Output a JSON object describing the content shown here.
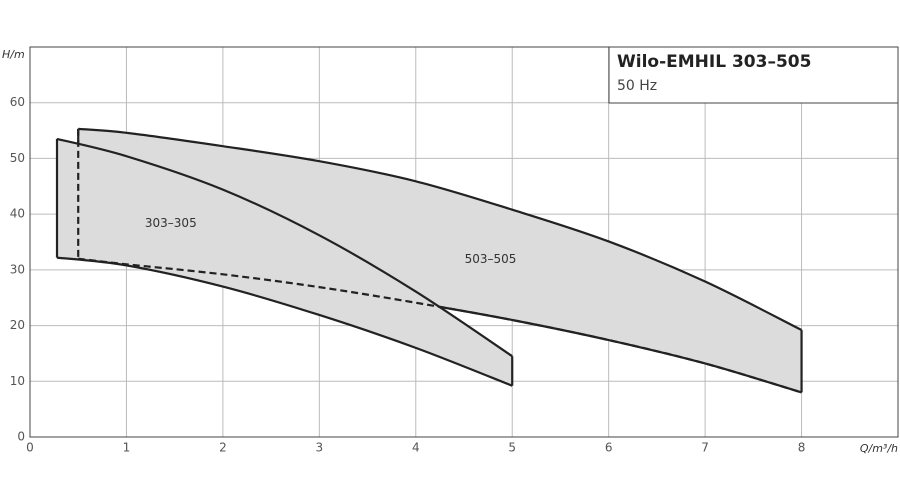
{
  "chart_data": {
    "type": "range-area",
    "title": "Wilo‑EMHIL 303–505",
    "subtitle": "50 Hz",
    "x_label": "Q/m³/h",
    "y_label": "H/m",
    "xlim": [
      0,
      9
    ],
    "ylim": [
      0,
      70
    ],
    "xticks": [
      0,
      1,
      2,
      3,
      4,
      5,
      6,
      7,
      8
    ],
    "yticks": [
      0,
      10,
      20,
      30,
      40,
      50,
      60
    ],
    "grid": true,
    "series": [
      {
        "name": "303–305",
        "color": "#dcdcdc",
        "x": [
          0.28,
          1,
          2,
          3,
          4,
          5
        ],
        "upper": [
          53.5,
          50.4,
          44.4,
          36.2,
          26.1,
          14.5
        ],
        "lower": [
          32.2,
          30.8,
          27.0,
          21.9,
          16.0,
          9.2
        ]
      },
      {
        "name": "503–505",
        "color": "#dcdcdc",
        "x": [
          0.5,
          1,
          2,
          3,
          4,
          5,
          6,
          7,
          8
        ],
        "upper": [
          55.3,
          54.6,
          52.2,
          49.5,
          45.9,
          40.8,
          35.1,
          27.9,
          19.2
        ],
        "lower": [
          32.0,
          31.0,
          29.2,
          26.9,
          24.1,
          21.0,
          17.4,
          13.2,
          8.0
        ]
      }
    ]
  }
}
